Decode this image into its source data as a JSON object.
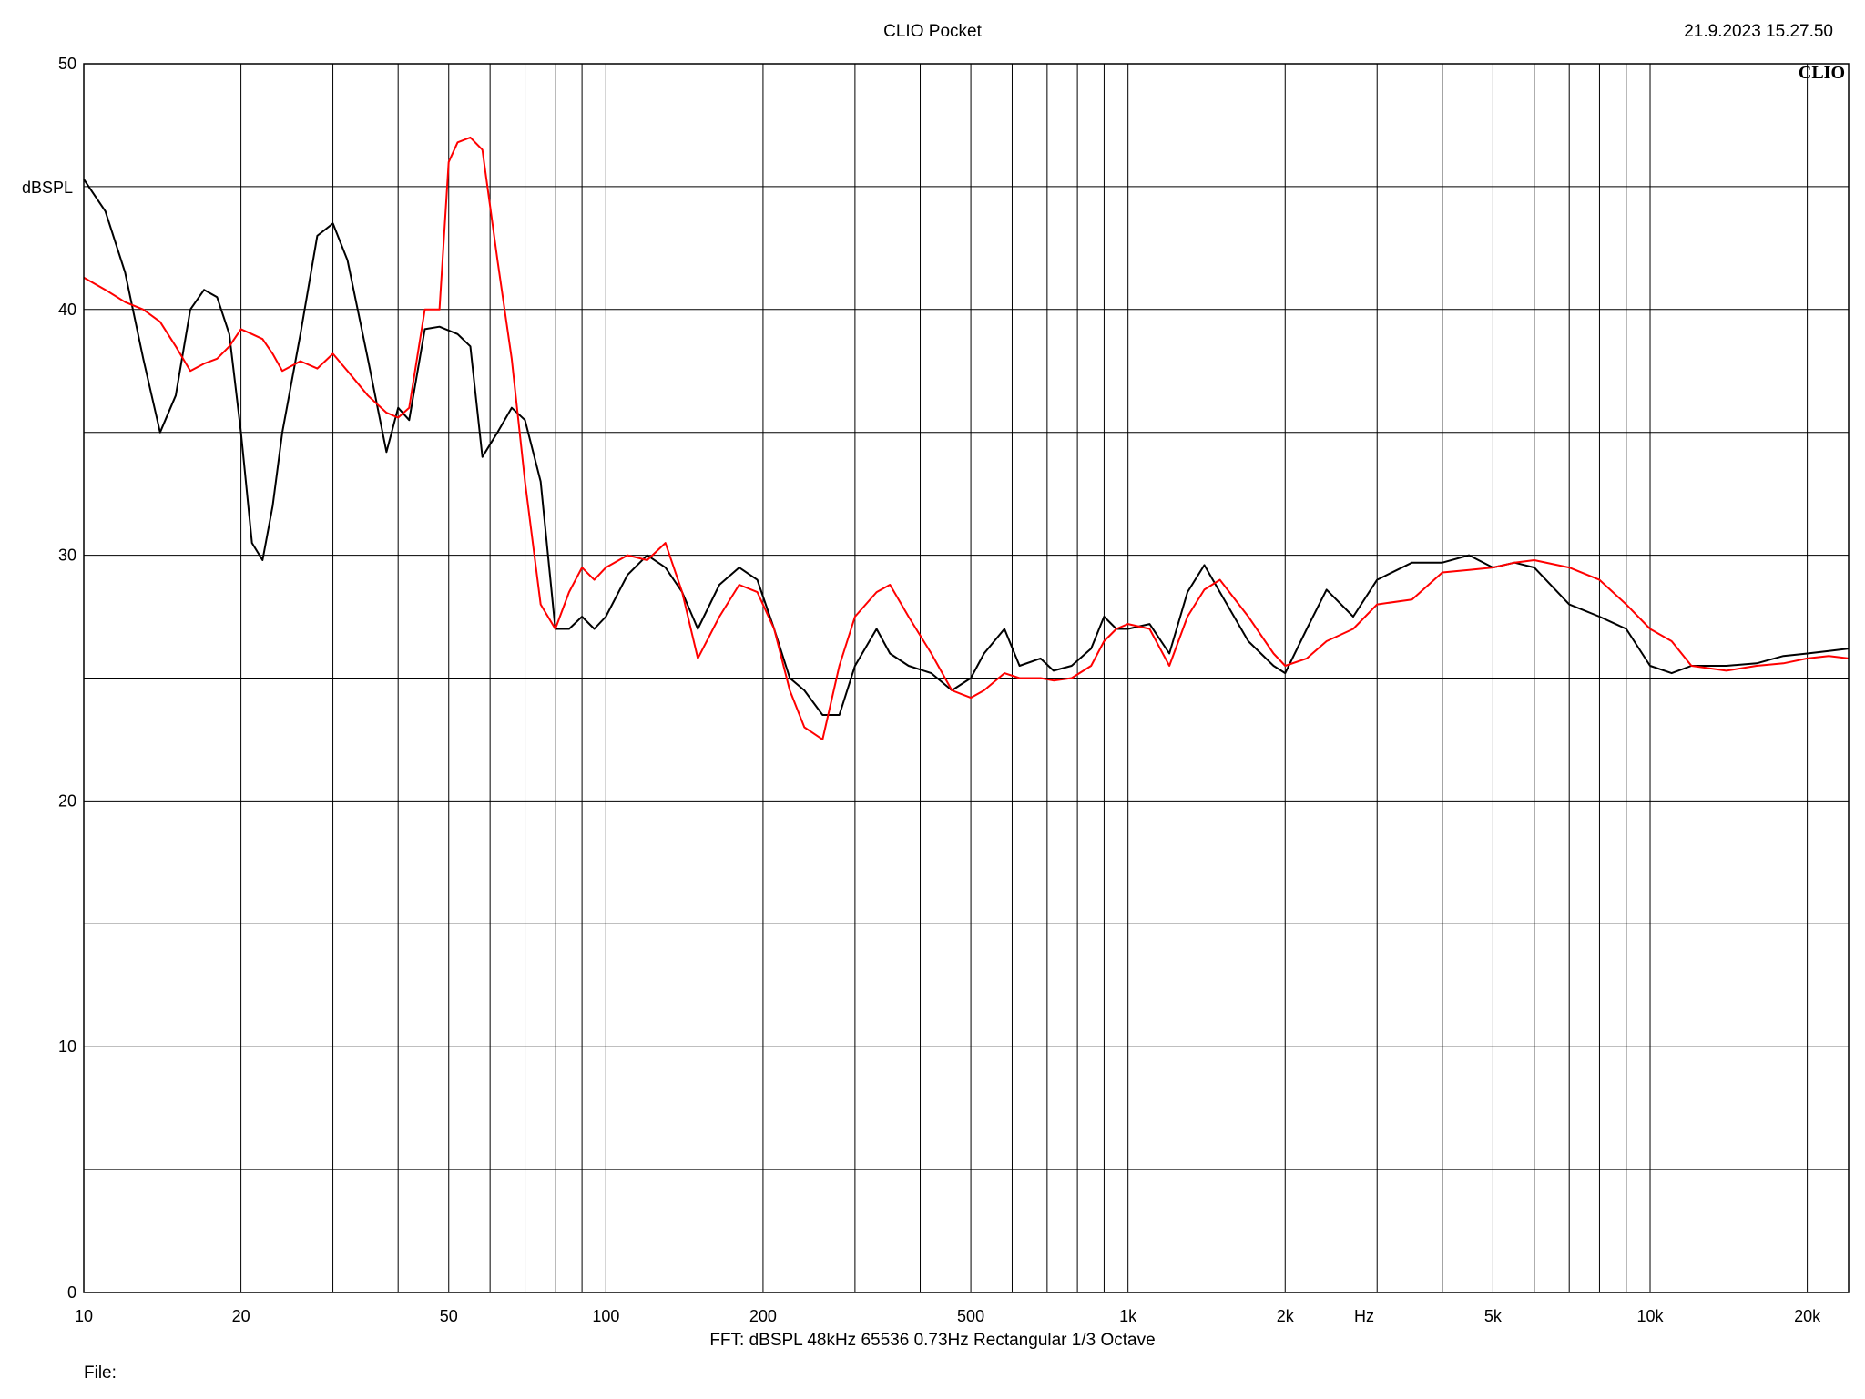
{
  "header": {
    "app_title": "CLIO Pocket",
    "timestamp": "21.9.2023 15.27.50",
    "logo": "CLIO"
  },
  "footer": {
    "info": "FFT:  dBSPL  48kHz   65536  0.73Hz  Rectangular  1/3 Octave",
    "file_label": "File:"
  },
  "chart_data": {
    "type": "line",
    "title": "",
    "xlabel": "Hz",
    "ylabel": "dBSPL",
    "xscale": "log",
    "xlim": [
      10,
      24000
    ],
    "ylim": [
      0,
      50
    ],
    "grid": true,
    "x_tick_labels": [
      {
        "value": 10,
        "label": "10"
      },
      {
        "value": 20,
        "label": "20"
      },
      {
        "value": 50,
        "label": "50"
      },
      {
        "value": 100,
        "label": "100"
      },
      {
        "value": 200,
        "label": "200"
      },
      {
        "value": 500,
        "label": "500"
      },
      {
        "value": 1000,
        "label": "1k"
      },
      {
        "value": 2000,
        "label": "2k"
      },
      {
        "value": 5000,
        "label": "5k"
      },
      {
        "value": 10000,
        "label": "10k"
      },
      {
        "value": 20000,
        "label": "20k"
      }
    ],
    "y_tick_labels": [
      {
        "value": 0,
        "label": "0"
      },
      {
        "value": 10,
        "label": "10"
      },
      {
        "value": 20,
        "label": "20"
      },
      {
        "value": 30,
        "label": "30"
      },
      {
        "value": 40,
        "label": "40"
      },
      {
        "value": 50,
        "label": "50"
      }
    ],
    "series": [
      {
        "color": "#000000",
        "x": [
          10,
          11,
          12,
          13,
          14,
          15,
          16,
          17,
          18,
          19,
          20,
          21,
          22,
          23,
          24,
          26,
          28,
          30,
          32,
          35,
          38,
          40,
          42,
          45,
          48,
          52,
          55,
          58,
          62,
          66,
          70,
          75,
          80,
          85,
          90,
          95,
          100,
          110,
          120,
          130,
          140,
          150,
          165,
          180,
          195,
          210,
          225,
          240,
          260,
          280,
          300,
          330,
          350,
          380,
          420,
          460,
          500,
          530,
          580,
          620,
          680,
          720,
          780,
          850,
          900,
          950,
          1000,
          1100,
          1200,
          1300,
          1400,
          1500,
          1700,
          1900,
          2000,
          2200,
          2400,
          2700,
          3000,
          3500,
          4000,
          4500,
          5000,
          5500,
          6000,
          7000,
          8000,
          9000,
          10000,
          11000,
          12000,
          14000,
          16000,
          18000,
          20000,
          22000,
          24000
        ],
        "y": [
          45.3,
          44,
          41.5,
          38,
          35,
          36.5,
          40,
          40.8,
          40.5,
          39,
          35,
          30.5,
          29.8,
          32,
          35,
          39,
          43,
          43.5,
          42,
          38,
          34.2,
          36,
          35.5,
          39.2,
          39.3,
          39,
          38.5,
          34,
          35,
          36,
          35.5,
          33,
          27,
          27,
          27.5,
          27,
          27.5,
          29.2,
          30,
          29.5,
          28.5,
          27,
          28.8,
          29.5,
          29,
          27,
          25,
          24.5,
          23.5,
          23.5,
          25.5,
          27,
          26,
          25.5,
          25.2,
          24.5,
          25,
          26,
          27,
          25.5,
          25.8,
          25.3,
          25.5,
          26.2,
          27.5,
          27,
          27,
          27.2,
          26,
          28.5,
          29.6,
          28.5,
          26.5,
          25.5,
          25.2,
          27,
          28.6,
          27.5,
          29,
          29.7,
          29.7,
          30,
          29.5,
          29.7,
          29.5,
          28,
          27.5,
          27,
          25.5,
          25.2,
          25.5,
          25.5,
          25.6,
          25.9,
          26,
          26.1,
          26.2
        ]
      },
      {
        "color": "#ff0000",
        "x": [
          10,
          11,
          12,
          13,
          14,
          15,
          16,
          17,
          18,
          19,
          20,
          21,
          22,
          23,
          24,
          26,
          28,
          30,
          32,
          35,
          38,
          40,
          42,
          45,
          48,
          50,
          52,
          55,
          58,
          62,
          66,
          70,
          75,
          80,
          85,
          90,
          95,
          100,
          110,
          120,
          130,
          140,
          150,
          165,
          180,
          195,
          210,
          225,
          240,
          260,
          280,
          300,
          330,
          350,
          380,
          420,
          460,
          500,
          530,
          580,
          620,
          680,
          720,
          780,
          850,
          900,
          950,
          1000,
          1100,
          1200,
          1300,
          1400,
          1500,
          1700,
          1900,
          2000,
          2200,
          2400,
          2700,
          3000,
          3500,
          4000,
          4500,
          5000,
          5500,
          6000,
          7000,
          8000,
          9000,
          10000,
          11000,
          12000,
          14000,
          16000,
          18000,
          20000,
          22000,
          24000
        ],
        "y": [
          41.3,
          40.8,
          40.3,
          40,
          39.5,
          38.5,
          37.5,
          37.8,
          38,
          38.5,
          39.2,
          39,
          38.8,
          38.2,
          37.5,
          37.9,
          37.6,
          38.2,
          37.5,
          36.5,
          35.8,
          35.6,
          36,
          40,
          40,
          46,
          46.8,
          47,
          46.5,
          42,
          38,
          33,
          28,
          27,
          28.5,
          29.5,
          29,
          29.5,
          30,
          29.8,
          30.5,
          28.5,
          25.8,
          27.5,
          28.8,
          28.5,
          27,
          24.5,
          23,
          22.5,
          25.5,
          27.5,
          28.5,
          28.8,
          27.5,
          26,
          24.5,
          24.2,
          24.5,
          25.2,
          25,
          25,
          24.9,
          25,
          25.5,
          26.5,
          27,
          27.2,
          27,
          25.5,
          27.5,
          28.6,
          29,
          27.5,
          26,
          25.5,
          25.8,
          26.5,
          27,
          28,
          28.2,
          29.3,
          29.4,
          29.5,
          29.7,
          29.8,
          29.5,
          29,
          28,
          27,
          26.5,
          25.5,
          25.3,
          25.5,
          25.6,
          25.8,
          25.9,
          25.8
        ]
      }
    ]
  }
}
